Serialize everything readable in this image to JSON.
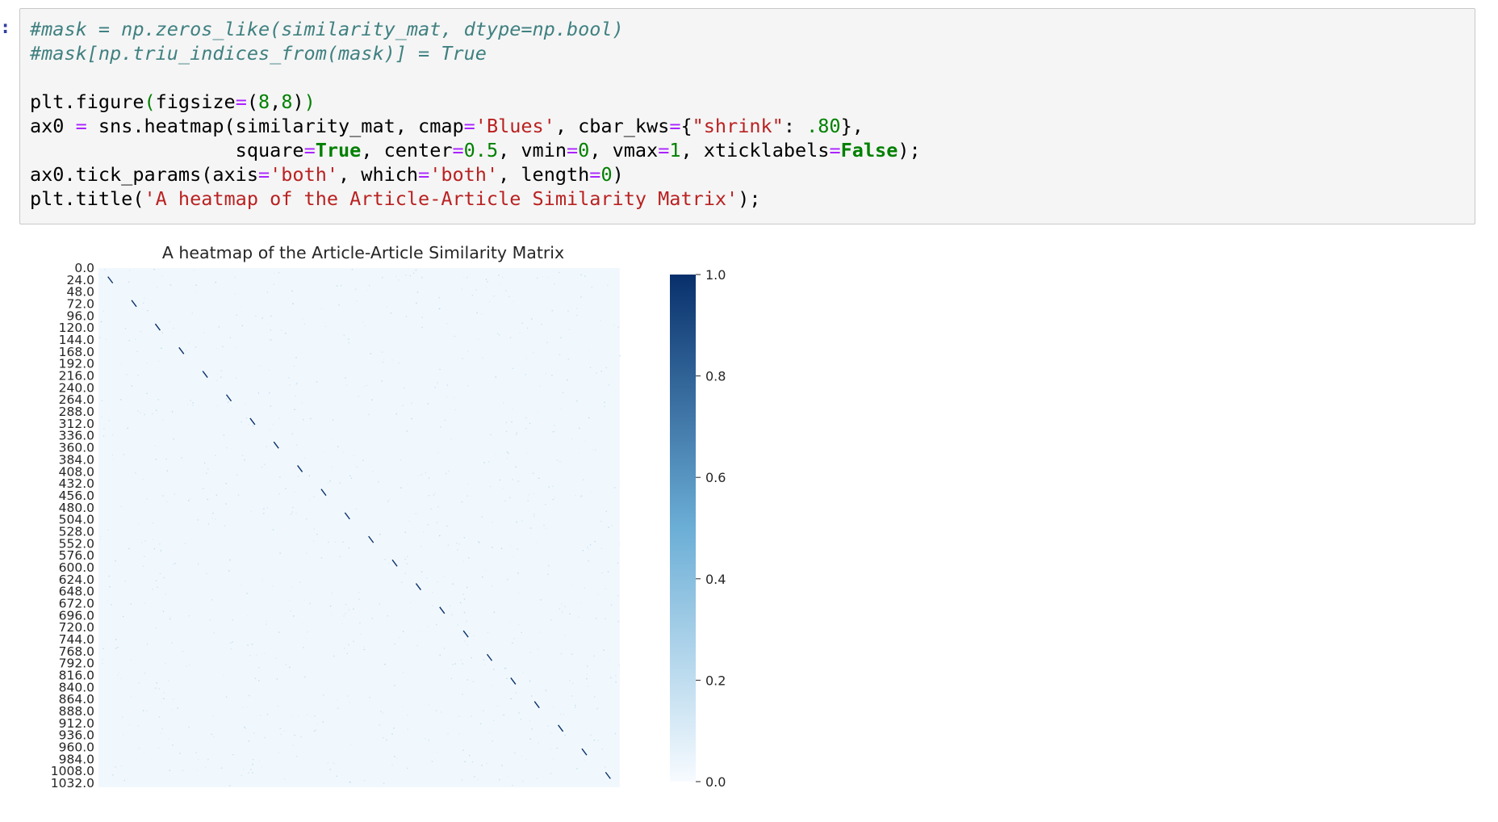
{
  "cell": {
    "prompt": ":",
    "code_lines": [
      [
        {
          "t": "#mask = np.zeros_like(similarity_mat, dtype=np.bool)",
          "c": "comment"
        }
      ],
      [
        {
          "t": "#mask[np.triu_indices_from(mask)] = True",
          "c": "comment"
        }
      ],
      [
        {
          "t": "",
          "c": ""
        }
      ],
      [
        {
          "t": "plt.figure",
          "c": ""
        },
        {
          "t": "(",
          "c": "paren"
        },
        {
          "t": "figsize",
          "c": ""
        },
        {
          "t": "=",
          "c": "op"
        },
        {
          "t": "(",
          "c": ""
        },
        {
          "t": "8",
          "c": "num"
        },
        {
          "t": ",",
          "c": ""
        },
        {
          "t": "8",
          "c": "num"
        },
        {
          "t": ")",
          "c": ""
        },
        {
          "t": ")",
          "c": "paren"
        }
      ],
      [
        {
          "t": "ax0 ",
          "c": ""
        },
        {
          "t": "=",
          "c": "op"
        },
        {
          "t": " sns.heatmap(similarity_mat, cmap",
          "c": ""
        },
        {
          "t": "=",
          "c": "op"
        },
        {
          "t": "'Blues'",
          "c": "str"
        },
        {
          "t": ", cbar_kws",
          "c": ""
        },
        {
          "t": "=",
          "c": "op"
        },
        {
          "t": "{",
          "c": ""
        },
        {
          "t": "\"shrink\"",
          "c": "str"
        },
        {
          "t": ": ",
          "c": ""
        },
        {
          "t": ".80",
          "c": "num"
        },
        {
          "t": "},",
          "c": ""
        }
      ],
      [
        {
          "t": "                  square",
          "c": ""
        },
        {
          "t": "=",
          "c": "op"
        },
        {
          "t": "True",
          "c": "kw"
        },
        {
          "t": ", center",
          "c": ""
        },
        {
          "t": "=",
          "c": "op"
        },
        {
          "t": "0.5",
          "c": "num"
        },
        {
          "t": ", vmin",
          "c": ""
        },
        {
          "t": "=",
          "c": "op"
        },
        {
          "t": "0",
          "c": "num"
        },
        {
          "t": ", vmax",
          "c": ""
        },
        {
          "t": "=",
          "c": "op"
        },
        {
          "t": "1",
          "c": "num"
        },
        {
          "t": ", xticklabels",
          "c": ""
        },
        {
          "t": "=",
          "c": "op"
        },
        {
          "t": "False",
          "c": "kw"
        },
        {
          "t": ");",
          "c": ""
        }
      ],
      [
        {
          "t": "ax0.tick_params(axis",
          "c": ""
        },
        {
          "t": "=",
          "c": "op"
        },
        {
          "t": "'both'",
          "c": "str"
        },
        {
          "t": ", which",
          "c": ""
        },
        {
          "t": "=",
          "c": "op"
        },
        {
          "t": "'both'",
          "c": "str"
        },
        {
          "t": ", length",
          "c": ""
        },
        {
          "t": "=",
          "c": "op"
        },
        {
          "t": "0",
          "c": "num"
        },
        {
          "t": ")",
          "c": ""
        }
      ],
      [
        {
          "t": "plt.title(",
          "c": ""
        },
        {
          "t": "'A heatmap of the Article-Article Similarity Matrix'",
          "c": "str"
        },
        {
          "t": ");",
          "c": ""
        }
      ]
    ]
  },
  "chart_data": {
    "type": "heatmap",
    "title": "A heatmap of the Article-Article Similarity Matrix",
    "colormap": "Blues",
    "ytick_labels": [
      "0.0",
      "24.0",
      "48.0",
      "72.0",
      "96.0",
      "120.0",
      "144.0",
      "168.0",
      "192.0",
      "216.0",
      "240.0",
      "264.0",
      "288.0",
      "312.0",
      "336.0",
      "360.0",
      "384.0",
      "408.0",
      "432.0",
      "456.0",
      "480.0",
      "504.0",
      "528.0",
      "552.0",
      "576.0",
      "600.0",
      "624.0",
      "648.0",
      "672.0",
      "696.0",
      "720.0",
      "744.0",
      "768.0",
      "792.0",
      "816.0",
      "840.0",
      "864.0",
      "888.0",
      "912.0",
      "936.0",
      "960.0",
      "984.0",
      "1008.0",
      "1032.0"
    ],
    "yrange": [
      0,
      1040
    ],
    "xrange": [
      0,
      1040
    ],
    "colorbar_ticks": [
      "0.0",
      "0.2",
      "0.4",
      "0.6",
      "0.8",
      "1.0"
    ],
    "colorbar_range": [
      0,
      1
    ],
    "diagonal_value": 1.0,
    "background_value": 0.02,
    "colors": {
      "low": "#f7fbff",
      "mid": "#6baed6",
      "high": "#08306b"
    }
  }
}
